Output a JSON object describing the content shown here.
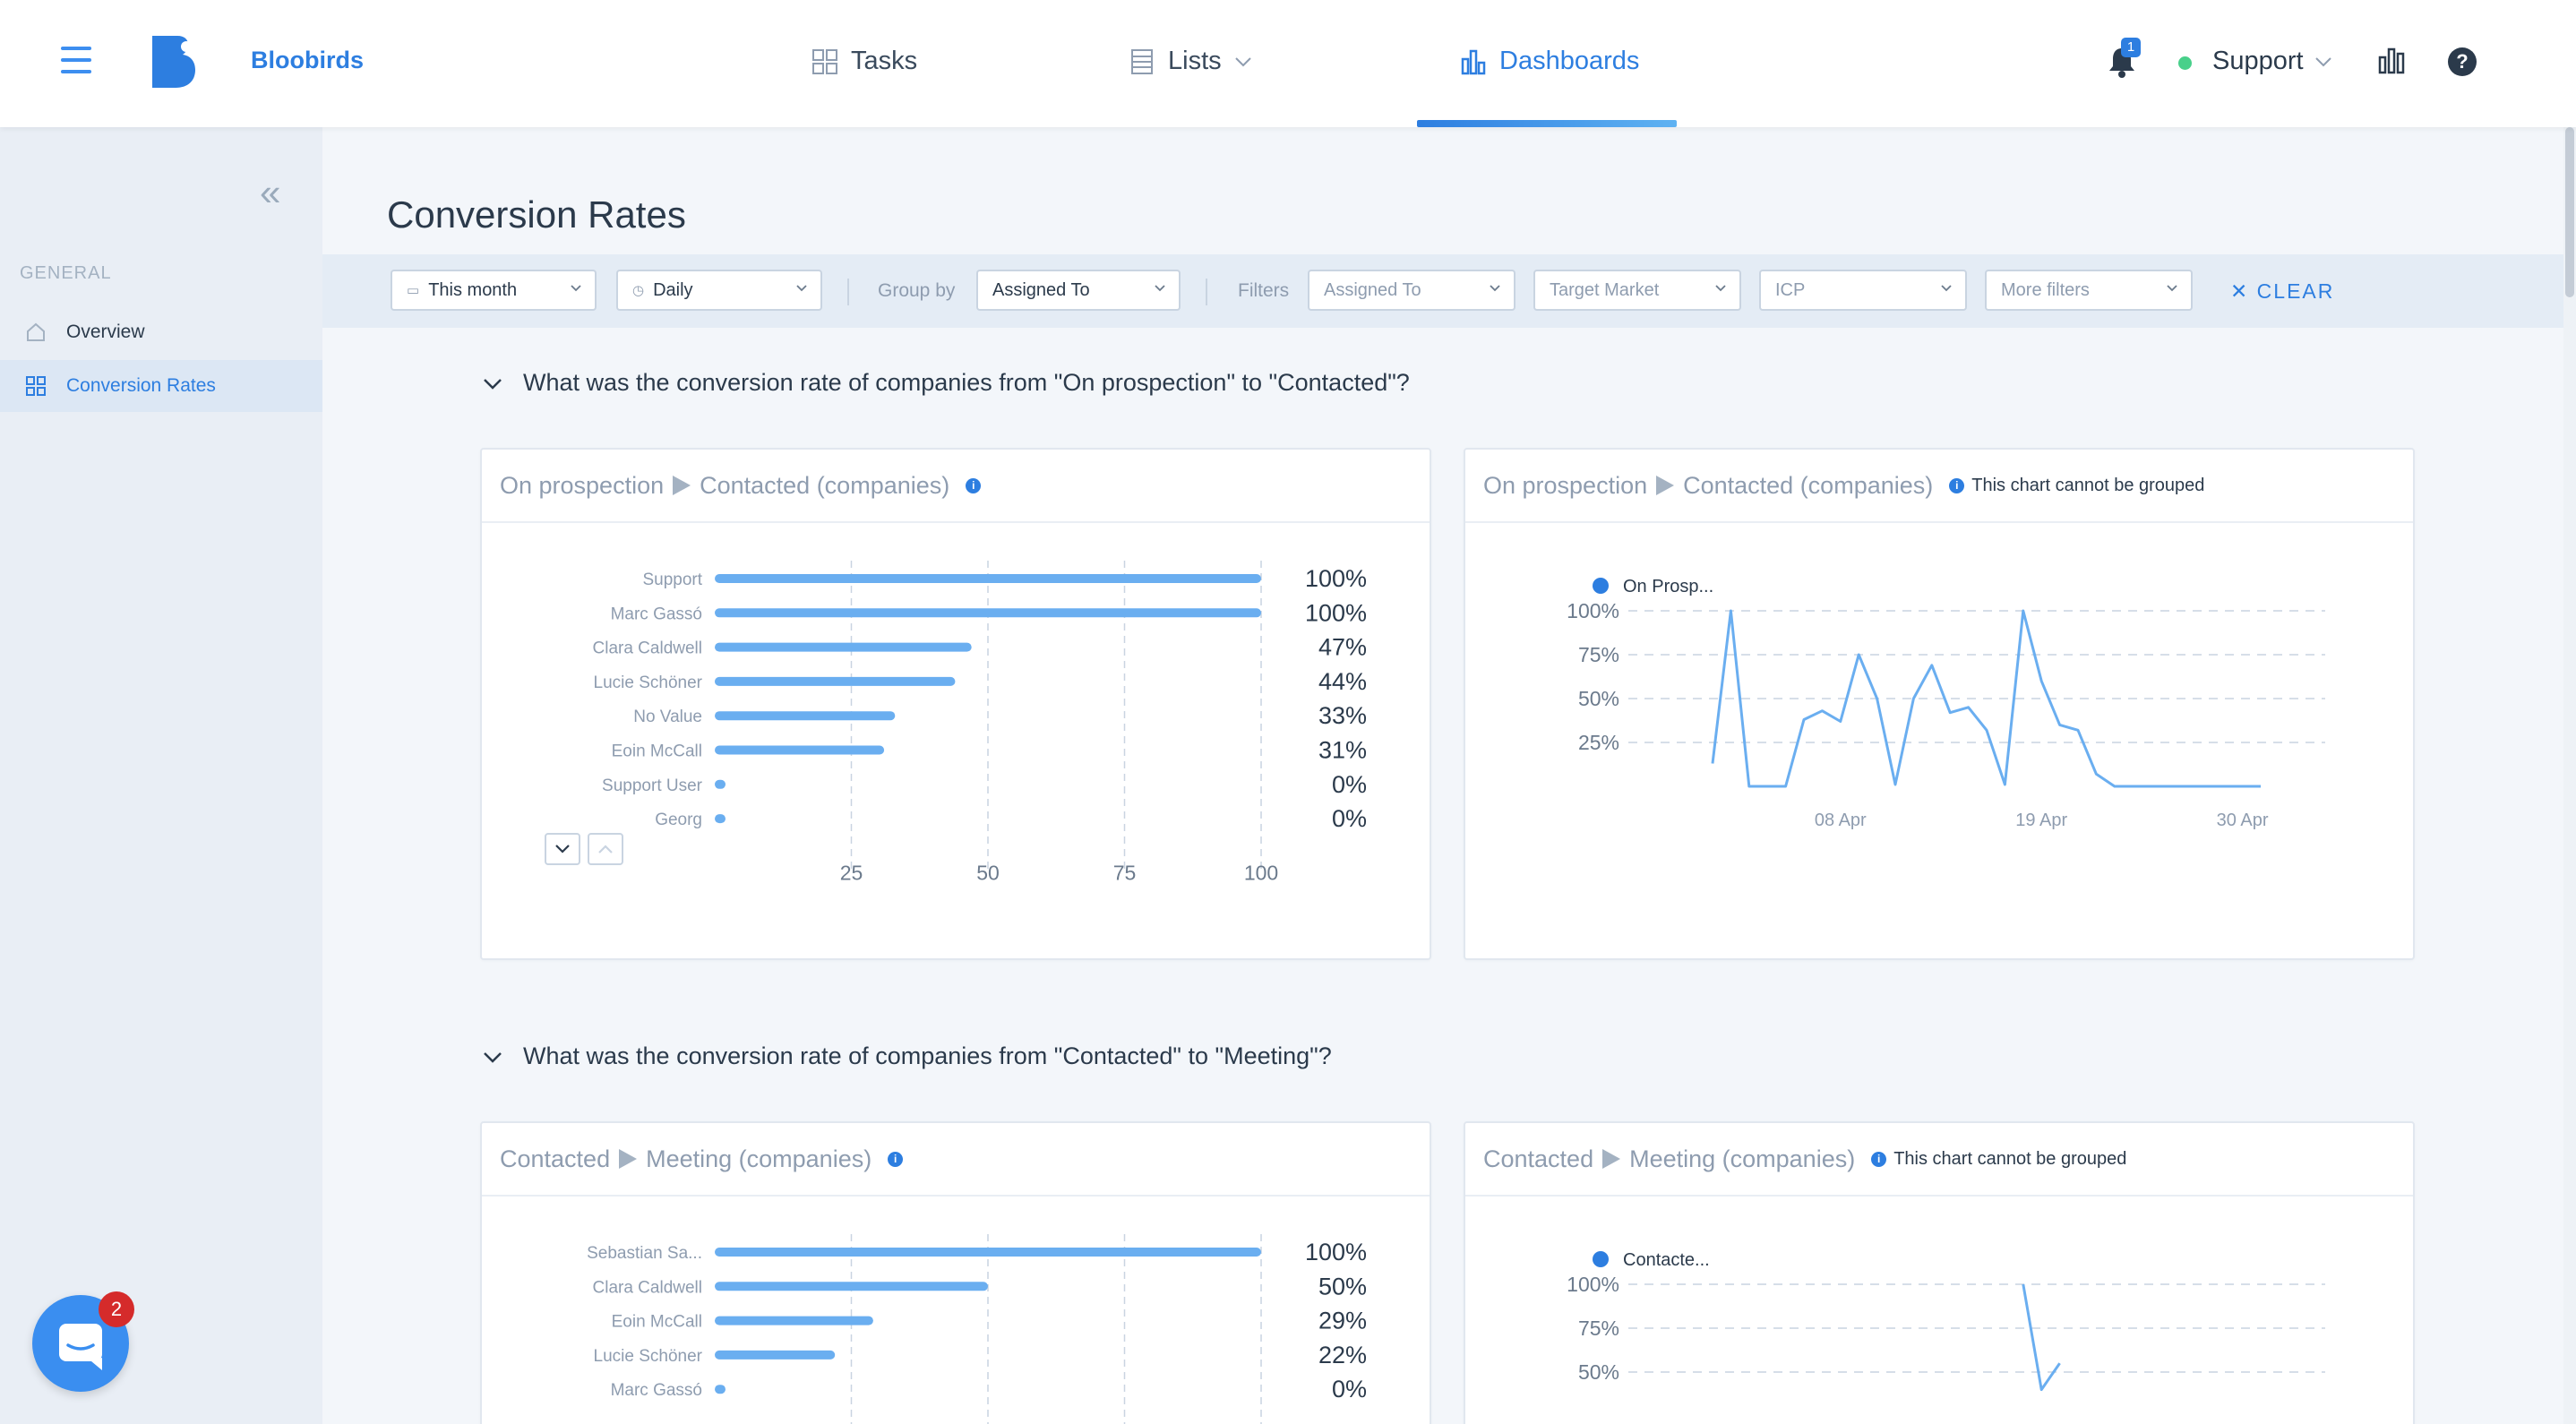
{
  "app": {
    "brand": "Bloobirds",
    "nav": {
      "tasks": "Tasks",
      "lists": "Lists",
      "dashboards": "Dashboards"
    },
    "notifications_count": "1",
    "account": "Support",
    "help": "?"
  },
  "sidebar": {
    "section": "GENERAL",
    "items": [
      {
        "label": "Overview",
        "icon": "home-icon"
      },
      {
        "label": "Conversion Rates",
        "icon": "grid-icon"
      }
    ]
  },
  "page": {
    "title": "Conversion Rates"
  },
  "filters": {
    "date_range": "This month",
    "granularity": "Daily",
    "group_by_label": "Group by",
    "group_by": "Assigned To",
    "filters_label": "Filters",
    "assigned_to": "Assigned To",
    "target_market": "Target Market",
    "icp": "ICP",
    "more": "More filters",
    "clear": "CLEAR"
  },
  "sections": [
    {
      "question": "What was the conversion rate of companies from \"On prospection\" to \"Contacted\"?",
      "bar_card": {
        "from": "On prospection",
        "to": "Contacted (companies)"
      },
      "line_card": {
        "from": "On prospection",
        "to": "Contacted (companies)",
        "note": "This chart cannot be grouped"
      }
    },
    {
      "question": "What was the conversion rate of companies from \"Contacted\" to \"Meeting\"?",
      "bar_card": {
        "from": "Contacted",
        "to": "Meeting (companies)"
      },
      "line_card": {
        "from": "Contacted",
        "to": "Meeting (companies)",
        "note": "This chart cannot be grouped"
      }
    }
  ],
  "chart_data": [
    {
      "type": "bar",
      "orientation": "horizontal",
      "categories": [
        "Support",
        "Marc Gassó",
        "Clara Caldwell",
        "Lucie Schöner",
        "No Value",
        "Eoin McCall",
        "Support User",
        "Georg"
      ],
      "values": [
        100,
        100,
        47,
        44,
        33,
        31,
        0,
        0
      ],
      "labels": [
        "100%",
        "100%",
        "47%",
        "44%",
        "33%",
        "31%",
        "0%",
        "0%"
      ],
      "xticks": [
        "25",
        "50",
        "75",
        "100"
      ],
      "xlim": [
        0,
        100
      ],
      "color": "#6aaef0"
    },
    {
      "type": "line",
      "series": [
        {
          "name": "On Prosp...",
          "values": [
            13,
            100,
            0,
            0,
            0,
            38,
            43,
            37,
            75,
            50,
            1,
            50,
            69,
            42,
            45,
            32,
            1,
            100,
            60,
            35,
            32,
            7,
            0,
            0,
            0,
            0,
            0,
            0,
            0,
            0,
            0
          ]
        }
      ],
      "yticks": [
        "100%",
        "75%",
        "50%",
        "25%"
      ],
      "xticks": [
        "08 Apr",
        "19 Apr",
        "30 Apr"
      ],
      "ylim": [
        0,
        100
      ],
      "color": "#6aaef0"
    },
    {
      "type": "bar",
      "orientation": "horizontal",
      "categories": [
        "Sebastian Sa...",
        "Clara Caldwell",
        "Eoin McCall",
        "Lucie Schöner",
        "Marc Gassó"
      ],
      "values": [
        100,
        50,
        29,
        22,
        0
      ],
      "labels": [
        "100%",
        "50%",
        "29%",
        "22%",
        "0%"
      ],
      "xlim": [
        0,
        100
      ],
      "color": "#6aaef0"
    },
    {
      "type": "line",
      "series": [
        {
          "name": "Contacte...",
          "values": [
            null,
            null,
            null,
            null,
            null,
            null,
            null,
            null,
            null,
            null,
            null,
            null,
            null,
            null,
            null,
            null,
            null,
            100,
            40,
            55
          ]
        }
      ],
      "yticks": [
        "100%",
        "75%",
        "50%"
      ],
      "ylim": [
        0,
        100
      ],
      "color": "#6aaef0"
    }
  ],
  "intercom_badge": "2"
}
